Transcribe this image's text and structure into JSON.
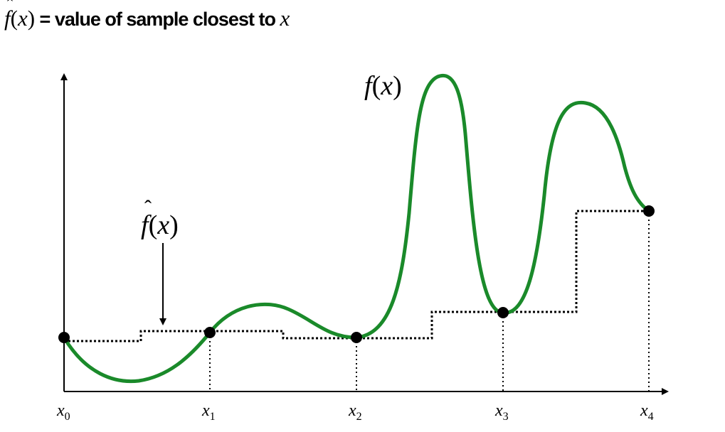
{
  "heading": {
    "f_char": "f",
    "paren_open": "(",
    "var": "x",
    "paren_close": ")",
    "text": " = value of sample closest to ",
    "trailing_var": "x"
  },
  "labels": {
    "f_label": "f(x)",
    "fhat_label": "f(x)",
    "ticks": [
      {
        "base": "x",
        "sub": "0"
      },
      {
        "base": "x",
        "sub": "1"
      },
      {
        "base": "x",
        "sub": "2"
      },
      {
        "base": "x",
        "sub": "3"
      },
      {
        "base": "x",
        "sub": "4"
      }
    ]
  },
  "colors": {
    "curve": "#1a8a2a",
    "axes": "#000000",
    "dots": "#000000"
  }
}
